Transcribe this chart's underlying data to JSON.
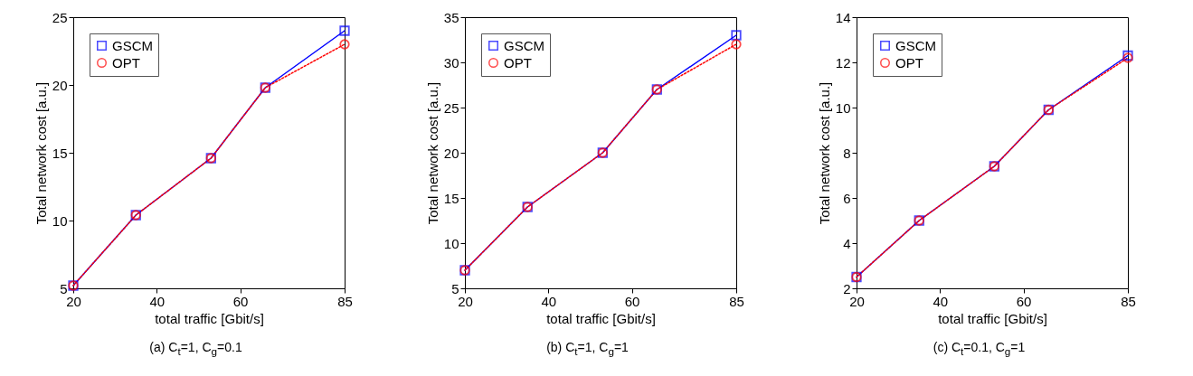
{
  "chart_data": [
    {
      "type": "line",
      "xlabel": "total traffic [Gbit/s]",
      "ylabel": "Total network cost [a.u.]",
      "x": [
        20,
        35,
        53,
        66,
        85
      ],
      "xlim": [
        20,
        85
      ],
      "xticks": [
        20,
        40,
        60,
        85
      ],
      "ylim": [
        5,
        25
      ],
      "yticks": [
        5,
        10,
        15,
        20,
        25
      ],
      "legend": "top left",
      "grid": false,
      "annotations": [
        "(a) C$_{t}$=1, C$_{g}$=0.1"
      ],
      "series": [
        {
          "name": "GSCM",
          "color": "#0000ff",
          "marker": "square",
          "line_style": "solid",
          "values": [
            5.2,
            10.4,
            14.6,
            19.8,
            24
          ]
        },
        {
          "name": "OPT",
          "color": "#ff0000",
          "marker": "circle",
          "line_style": "dotted",
          "values": [
            5.2,
            10.4,
            14.6,
            19.8,
            23
          ]
        }
      ]
    },
    {
      "type": "line",
      "xlabel": "total traffic [Gbit/s]",
      "ylabel": "Total network cost [a.u.]",
      "x": [
        20,
        35,
        53,
        66,
        85
      ],
      "xlim": [
        20,
        85
      ],
      "xticks": [
        20,
        40,
        60,
        85
      ],
      "ylim": [
        5,
        35
      ],
      "yticks": [
        5,
        10,
        15,
        20,
        25,
        30,
        35
      ],
      "legend": "top left",
      "grid": false,
      "annotations": [
        "(b) C$_{t}$=1, C$_{g}$=1"
      ],
      "series": [
        {
          "name": "GSCM",
          "color": "#0000ff",
          "marker": "square",
          "line_style": "solid",
          "values": [
            7,
            14,
            20,
            27,
            33
          ]
        },
        {
          "name": "OPT",
          "color": "#ff0000",
          "marker": "circle",
          "line_style": "dotted",
          "values": [
            7,
            14,
            20,
            27,
            32
          ]
        }
      ]
    },
    {
      "type": "line",
      "xlabel": "total traffic [Gbit/s]",
      "ylabel": "Total network cost [a.u.]",
      "x": [
        20,
        35,
        53,
        66,
        85
      ],
      "xlim": [
        20,
        85
      ],
      "xticks": [
        20,
        40,
        60,
        85
      ],
      "ylim": [
        2,
        14
      ],
      "yticks": [
        2,
        4,
        6,
        8,
        10,
        12,
        14
      ],
      "legend": "top left",
      "grid": false,
      "annotations": [
        "(c) C$_{t}$=0.1, C$_{g}$=1"
      ],
      "series": [
        {
          "name": "GSCM",
          "color": "#0000ff",
          "marker": "square",
          "line_style": "solid",
          "values": [
            2.5,
            5,
            7.4,
            9.9,
            12.3
          ]
        },
        {
          "name": "OPT",
          "color": "#ff0000",
          "marker": "circle",
          "line_style": "dotted",
          "values": [
            2.5,
            5,
            7.4,
            9.9,
            12.2
          ]
        }
      ]
    }
  ]
}
